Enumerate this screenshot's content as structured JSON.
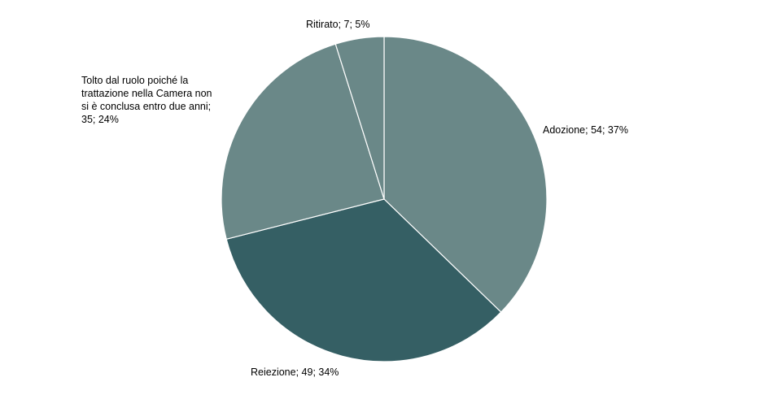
{
  "chart_data": {
    "type": "pie",
    "title": "",
    "slices": [
      {
        "label": "Adozione",
        "value": 54,
        "percent": 37,
        "color": "#6a8888",
        "display": "Adozione; 54; 37%"
      },
      {
        "label": "Reiezione",
        "value": 49,
        "percent": 34,
        "color": "#355f64",
        "display": "Reiezione; 49; 34%"
      },
      {
        "label": "Tolto dal ruolo poiché la trattazione nella Camera non si è conclusa entro due anni",
        "value": 35,
        "percent": 24,
        "color": "#6a8888",
        "display_lines": [
          "Tolto dal ruolo poiché la",
          "trattazione nella Camera non",
          "si è conclusa entro due anni;",
          "35; 24%"
        ]
      },
      {
        "label": "Ritirato",
        "value": 7,
        "percent": 5,
        "color": "#6a8888",
        "display": "Ritirato; 7; 5%"
      }
    ],
    "start_angle": "12 o'clock",
    "direction": "clockwise",
    "legend": "none"
  }
}
